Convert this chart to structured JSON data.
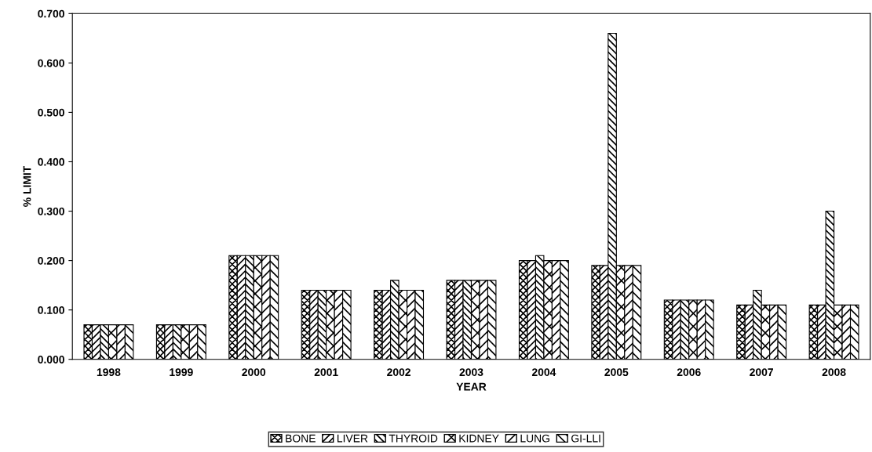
{
  "chart_data": {
    "type": "bar",
    "xlabel": "YEAR",
    "ylabel": "% LIMIT",
    "categories": [
      "1998",
      "1999",
      "2000",
      "2001",
      "2002",
      "2003",
      "2004",
      "2005",
      "2006",
      "2007",
      "2008"
    ],
    "series": [
      {
        "name": "BONE",
        "color": "#000000",
        "values": [
          0.07,
          0.07,
          0.21,
          0.14,
          0.14,
          0.16,
          0.2,
          0.19,
          0.12,
          0.11,
          0.11
        ]
      },
      {
        "name": "LIVER",
        "color": "#000000",
        "values": [
          0.07,
          0.07,
          0.21,
          0.14,
          0.14,
          0.16,
          0.2,
          0.19,
          0.12,
          0.11,
          0.11
        ]
      },
      {
        "name": "THYROID",
        "color": "#000000",
        "values": [
          0.07,
          0.07,
          0.21,
          0.14,
          0.16,
          0.16,
          0.21,
          0.66,
          0.12,
          0.14,
          0.3
        ]
      },
      {
        "name": "KIDNEY",
        "color": "#000000",
        "values": [
          0.07,
          0.07,
          0.21,
          0.14,
          0.14,
          0.16,
          0.2,
          0.19,
          0.12,
          0.11,
          0.11
        ]
      },
      {
        "name": "LUNG",
        "color": "#000000",
        "values": [
          0.07,
          0.07,
          0.21,
          0.14,
          0.14,
          0.16,
          0.2,
          0.19,
          0.12,
          0.11,
          0.11
        ]
      },
      {
        "name": "GI-LLI",
        "color": "#000000",
        "values": [
          0.07,
          0.07,
          0.21,
          0.14,
          0.14,
          0.16,
          0.2,
          0.19,
          0.12,
          0.11,
          0.11
        ]
      }
    ],
    "ylim": [
      0,
      0.7
    ],
    "yticks": [
      {
        "value": 0,
        "label": "0.000"
      },
      {
        "value": 0.1,
        "label": "0.100"
      },
      {
        "value": 0.2,
        "label": "0.200"
      },
      {
        "value": 0.3,
        "label": "0.300"
      },
      {
        "value": 0.4,
        "label": "0.400"
      },
      {
        "value": 0.5,
        "label": "0.500"
      },
      {
        "value": 0.6,
        "label": "0.600"
      },
      {
        "value": 0.7,
        "label": "0.700"
      }
    ],
    "grid": false,
    "legend": "bottom"
  }
}
